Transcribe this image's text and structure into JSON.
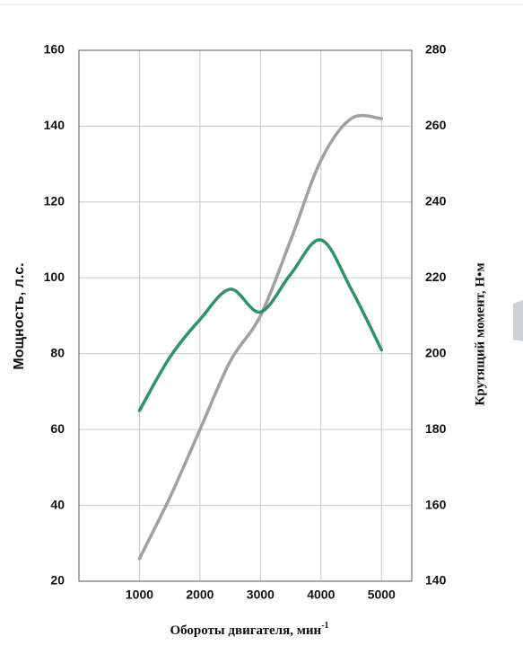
{
  "chart_data": {
    "type": "line",
    "xlabel": "Обороты двигателя, мин",
    "xlabel_sup": "-1",
    "ylabel": "Мощность, л.с.",
    "y2label": "Крутящий момент, Н•м",
    "x": [
      1000,
      1500,
      2000,
      2500,
      3000,
      3500,
      4000,
      4500,
      5000
    ],
    "xlim": [
      0,
      5500
    ],
    "xticks": [
      1000,
      2000,
      3000,
      4000,
      5000
    ],
    "ylim": [
      20,
      160
    ],
    "yticks": [
      20,
      40,
      60,
      80,
      100,
      120,
      140,
      160
    ],
    "y2lim": [
      140,
      280
    ],
    "y2ticks": [
      140,
      160,
      180,
      200,
      220,
      240,
      260,
      280
    ],
    "grid": true,
    "series": [
      {
        "name": "Мощность",
        "color": "#a0a0a0",
        "values": [
          26,
          42,
          60,
          78,
          90,
          110,
          131,
          142,
          142
        ]
      },
      {
        "name": "Крутящий момент",
        "color": "#2e9466",
        "axis": "y2",
        "values": [
          185,
          199,
          209,
          217,
          211,
          221,
          230,
          217,
          201
        ]
      }
    ]
  }
}
